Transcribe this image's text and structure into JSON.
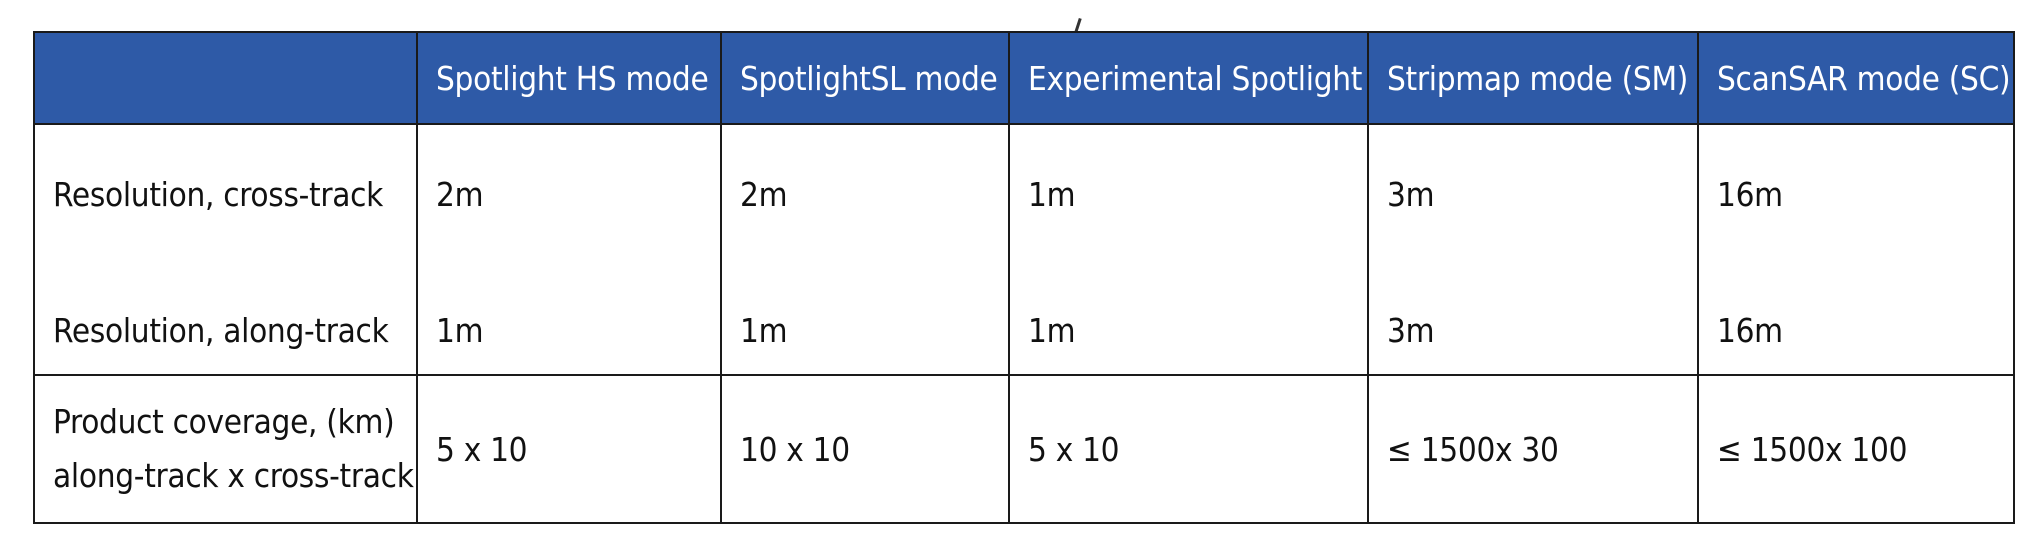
{
  "table": {
    "headers": [
      "",
      "Spotlight HS mode",
      "SpotlightSL mode",
      "Experimental Spotlight",
      "Stripmap mode (SM)",
      "ScanSAR mode (SC)"
    ],
    "rows": [
      {
        "label_lines": [
          "Resolution, cross-track",
          "Resolution, along-track"
        ],
        "cells": [
          [
            "2m",
            "1m"
          ],
          [
            "2m",
            "1m"
          ],
          [
            "1m",
            "1m"
          ],
          [
            "3m",
            "3m"
          ],
          [
            "16m",
            "16m"
          ]
        ]
      },
      {
        "label_lines": [
          "Product coverage, (km)",
          "along-track x cross-track"
        ],
        "cells": [
          "5 x 10",
          "10 x 10",
          "5 x 10",
          "≤ 1500x 30",
          "≤ 1500x 100"
        ]
      }
    ]
  },
  "colors": {
    "header_background": "#2e5aa7",
    "header_text": "#ffffff",
    "border": "#1a1a1a"
  }
}
